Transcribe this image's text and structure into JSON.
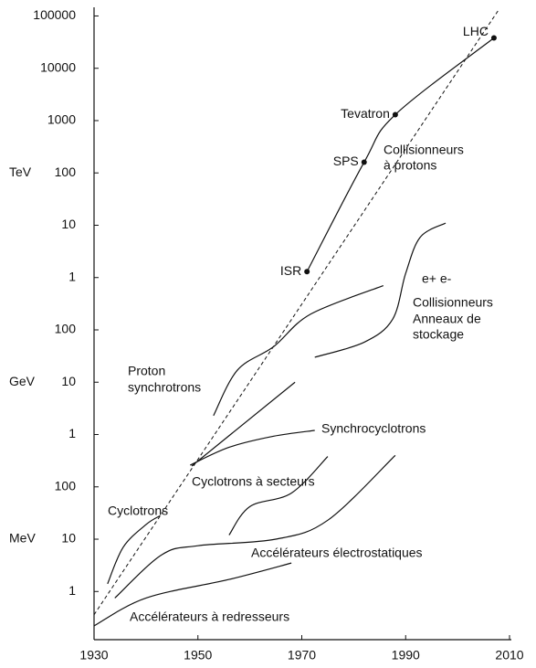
{
  "chart_data": {
    "type": "line",
    "log_y": true,
    "xlim": [
      1930,
      2010
    ],
    "xticks": [
      1930,
      1950,
      1970,
      1990,
      2010
    ],
    "ylim": [
      0.12,
      135000000000.0
    ],
    "yticks": [
      1,
      10,
      100,
      {
        "value": 1000,
        "label": "1"
      },
      {
        "value": 10000,
        "label": "10"
      },
      {
        "value": 100000,
        "label": "100"
      },
      {
        "value": 1000000,
        "label": "1"
      },
      {
        "value": 10000000,
        "label": "10"
      },
      {
        "value": 100000000,
        "label": "100"
      },
      {
        "value": 1000000000,
        "label": "1000"
      },
      {
        "value": 10000000000,
        "label": "10000"
      },
      {
        "value": 100000000000,
        "label": "100000"
      }
    ],
    "axis_units": [
      {
        "label": "TeV",
        "value": 100000000
      },
      {
        "label": "GeV",
        "value": 10000
      },
      {
        "label": "MeV",
        "value": 10
      }
    ],
    "series": [
      {
        "x": [
          1930,
          1940,
          1956,
          1968
        ],
        "values": [
          0.22,
          0.75,
          1.7,
          3.5
        ],
        "color": "#111"
      },
      {
        "x": [
          1934,
          1943,
          1950,
          1965,
          1975,
          1988
        ],
        "values": [
          0.75,
          5,
          7.5,
          10,
          23,
          400
        ],
        "color": "#111"
      },
      {
        "x": [
          1932.6,
          1935.6,
          1940,
          1942.7
        ],
        "values": [
          1.4,
          7,
          19,
          28
        ],
        "color": "#111"
      },
      {
        "x": [
          1956,
          1960,
          1968,
          1975
        ],
        "values": [
          12,
          42,
          76,
          380
        ],
        "color": "#111"
      },
      {
        "x": [
          1948.5,
          1956,
          1964.6,
          1972.5
        ],
        "values": [
          260,
          570,
          930,
          1200
        ],
        "color": "#111"
      },
      {
        "x": [
          1948.8,
          1968.7,
          null,
          1953,
          1957.6,
          1964.6,
          1971.7,
          1985.7
        ],
        "values": [
          250,
          10000,
          null,
          2300,
          17000,
          48000,
          200000,
          700000
        ],
        "color": "#111"
      },
      {
        "x": [
          1972.5,
          1982,
          1987.5,
          1990,
          1992.8,
          1997.7
        ],
        "values": [
          30000,
          58000,
          160000,
          1200000,
          5900000,
          11000000
        ],
        "color": "#111"
      },
      {
        "x": [
          1971,
          1982,
          1988,
          2007
        ],
        "values": [
          1300000,
          160000000,
          1300000000,
          38000000000
        ],
        "color": "#111",
        "markers": true,
        "point_labels": [
          "ISR",
          "SPS",
          "Tevatron",
          "LHC"
        ]
      },
      {
        "x": [
          1930,
          2008
        ],
        "values": [
          0.36,
          135000000000
        ],
        "color": "#111",
        "dashed": true
      }
    ],
    "annotations": [
      "Collisionneurs",
      "à protons",
      "e+ e-",
      "Collisionneurs",
      "Anneaux de",
      "stockage",
      "Proton",
      "synchrotrons",
      "Synchrocyclotrons",
      "Cyclotrons à secteurs",
      "Cyclotrons",
      "Accélérateurs électrostatiques",
      "Accélérateurs à redresseurs"
    ]
  }
}
